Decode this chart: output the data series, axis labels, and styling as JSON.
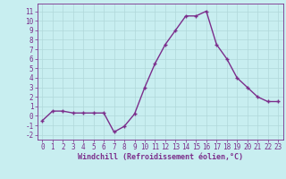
{
  "x": [
    0,
    1,
    2,
    3,
    4,
    5,
    6,
    7,
    8,
    9,
    10,
    11,
    12,
    13,
    14,
    15,
    16,
    17,
    18,
    19,
    20,
    21,
    22,
    23
  ],
  "y": [
    -0.5,
    0.5,
    0.5,
    0.3,
    0.3,
    0.3,
    0.3,
    -1.7,
    -1.1,
    0.2,
    3.0,
    5.5,
    7.5,
    9.0,
    10.5,
    10.5,
    11.0,
    7.5,
    6.0,
    4.0,
    3.0,
    2.0,
    1.5,
    1.5
  ],
  "line_color": "#7B2D8B",
  "marker": "+",
  "marker_size": 3,
  "linewidth": 1.0,
  "xlabel": "Windchill (Refroidissement éolien,°C)",
  "xlabel_fontsize": 6,
  "yticks": [
    -2,
    -1,
    0,
    1,
    2,
    3,
    4,
    5,
    6,
    7,
    8,
    9,
    10,
    11
  ],
  "ylim": [
    -2.5,
    11.8
  ],
  "xlim": [
    -0.5,
    23.5
  ],
  "background_color": "#c8eef0",
  "grid_color": "#b0d8da",
  "tick_fontsize": 5.5
}
